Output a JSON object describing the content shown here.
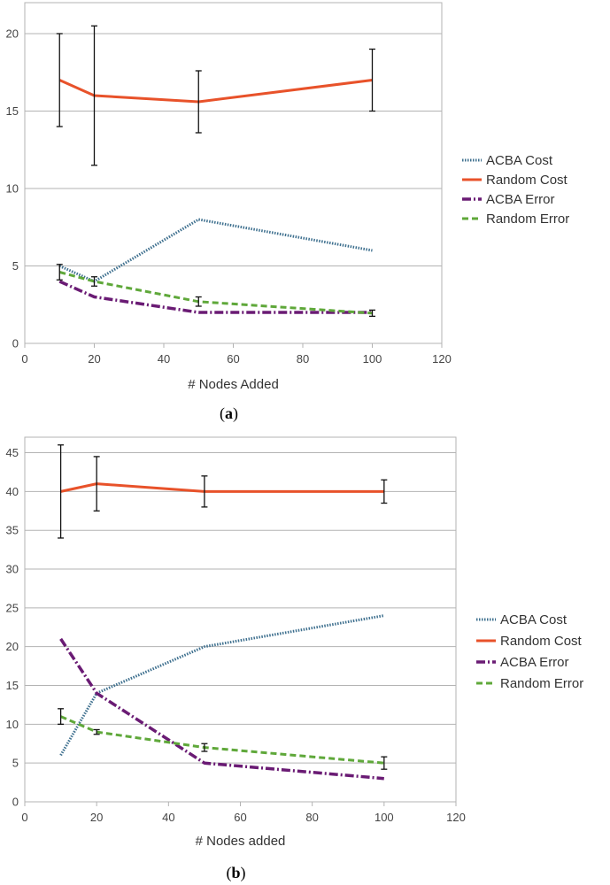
{
  "chart_data": [
    {
      "type": "line",
      "panel": "a",
      "caption_open": "(",
      "caption_letter": "a",
      "caption_close": ")",
      "xlabel": "# Nodes Added",
      "ylabel": "",
      "xlim": [
        0,
        120
      ],
      "ylim": [
        0,
        22
      ],
      "x_ticks": [
        0,
        20,
        40,
        60,
        80,
        100,
        120
      ],
      "y_ticks": [
        0,
        5,
        10,
        15,
        20
      ],
      "grid": true,
      "legend_position": "right",
      "series": [
        {
          "name": "ACBA Cost",
          "color": "#3d6f8e",
          "style": "dotted",
          "x": [
            10,
            20,
            50,
            100
          ],
          "values": [
            5,
            4,
            8,
            6
          ],
          "error": [
            0,
            0,
            0,
            0
          ]
        },
        {
          "name": "Random Cost",
          "color": "#e8522a",
          "style": "solid",
          "x": [
            10,
            20,
            50,
            100
          ],
          "values": [
            17,
            16,
            15.6,
            17
          ],
          "error": [
            3,
            4.5,
            2,
            2
          ]
        },
        {
          "name": "ACBA Error",
          "color": "#6a1b74",
          "style": "dashdot",
          "x": [
            10,
            20,
            50,
            100
          ],
          "values": [
            4,
            3,
            2,
            2
          ],
          "error": [
            0,
            0,
            0,
            0
          ]
        },
        {
          "name": "Random Error",
          "color": "#5fa83a",
          "style": "dashed",
          "x": [
            10,
            20,
            50,
            100
          ],
          "values": [
            4.6,
            4,
            2.7,
            1.95
          ],
          "error": [
            0.5,
            0.3,
            0.3,
            0.2
          ]
        }
      ]
    },
    {
      "type": "line",
      "panel": "b",
      "caption_open": "(",
      "caption_letter": "b",
      "caption_close": ")",
      "xlabel": "# Nodes added",
      "ylabel": "",
      "xlim": [
        0,
        120
      ],
      "ylim": [
        0,
        47
      ],
      "x_ticks": [
        0,
        20,
        40,
        60,
        80,
        100,
        120
      ],
      "y_ticks": [
        0,
        5,
        10,
        15,
        20,
        25,
        30,
        35,
        40,
        45
      ],
      "grid": true,
      "legend_position": "right",
      "series": [
        {
          "name": "ACBA Cost",
          "color": "#3d6f8e",
          "style": "dotted",
          "x": [
            10,
            20,
            50,
            100
          ],
          "values": [
            6,
            14,
            20,
            24
          ],
          "error": [
            0,
            0,
            0,
            0
          ]
        },
        {
          "name": "Random Cost",
          "color": "#e8522a",
          "style": "solid",
          "x": [
            10,
            20,
            50,
            100
          ],
          "values": [
            40,
            41,
            40,
            40
          ],
          "error": [
            6,
            3.5,
            2,
            1.5
          ]
        },
        {
          "name": "ACBA Error",
          "color": "#6a1b74",
          "style": "dashdot",
          "x": [
            10,
            20,
            50,
            100
          ],
          "values": [
            21,
            14,
            5,
            3
          ],
          "error": [
            0,
            0,
            0,
            0
          ]
        },
        {
          "name": "Random Error",
          "color": "#5fa83a",
          "style": "dashed",
          "x": [
            10,
            20,
            50,
            100
          ],
          "values": [
            11,
            9,
            7,
            5
          ],
          "error": [
            1,
            0.3,
            0.5,
            0.8
          ]
        }
      ]
    }
  ]
}
